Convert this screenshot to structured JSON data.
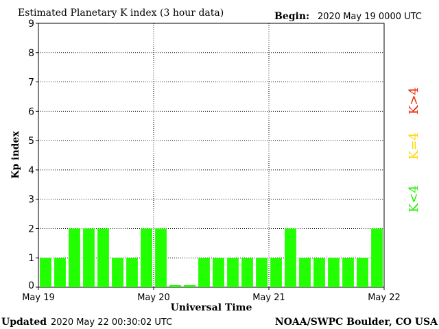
{
  "chart_data": {
    "type": "bar",
    "title": "Estimated Planetary K index (3 hour data)",
    "begin_label": "Begin:",
    "begin_value": "2020 May 19 0000 UTC",
    "xlabel": "Universal Time",
    "ylabel": "Kp index",
    "ylim": [
      0,
      9
    ],
    "yticks": [
      "0",
      "1",
      "2",
      "3",
      "4",
      "5",
      "6",
      "7",
      "8",
      "9"
    ],
    "xticks": [
      "May 19",
      "May 20",
      "May 21",
      "May 22"
    ],
    "grid": true,
    "values": [
      1,
      1,
      2,
      2,
      2,
      1,
      1,
      2,
      2,
      0.07,
      0.07,
      1,
      1,
      1,
      1,
      1,
      1,
      2,
      1,
      1,
      1,
      1,
      1,
      2
    ],
    "bar_color": "#22ff00",
    "legend": [
      {
        "label": "K<4",
        "color": "#22ee00"
      },
      {
        "label": "K=4",
        "color": "#ffd700"
      },
      {
        "label": "K>4",
        "color": "#ee2200"
      }
    ],
    "legend_placement": "right"
  },
  "footer": {
    "updated_label": "Updated",
    "updated_value": "2020 May 22 00:30:02 UTC",
    "source": "NOAA/SWPC Boulder, CO USA"
  }
}
